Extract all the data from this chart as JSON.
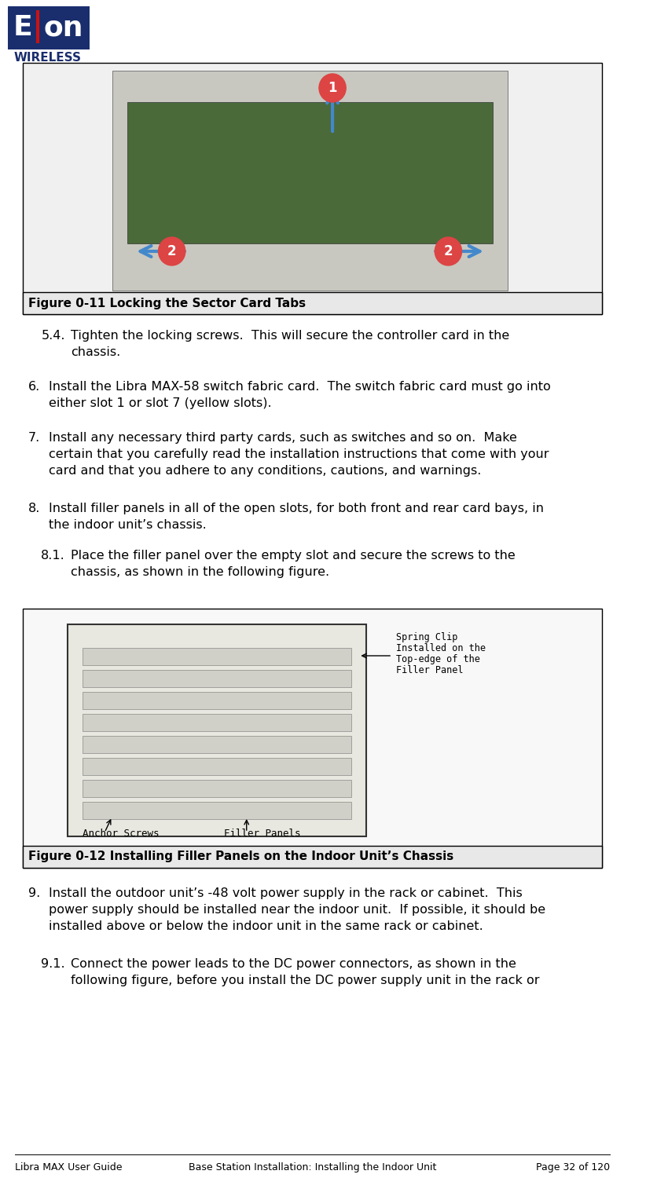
{
  "page_width": 8.36,
  "page_height": 15.0,
  "background_color": "#ffffff",
  "logo_text_e": "E",
  "logo_text_ion": "ion",
  "logo_text_wireless": "WIRELESS",
  "logo_color_main": "#1a2e6e",
  "logo_color_red": "#cc0000",
  "fig1_caption": "Figure 0-11 Locking the Sector Card Tabs",
  "fig2_caption": "Figure 0-12 Installing Filler Panels on the Indoor Unit’s Chassis",
  "footer_left": "Libra MAX User Guide",
  "footer_center": "Base Station Installation: Installing the Indoor Unit",
  "footer_right": "Page 32 of 120",
  "text_items": [
    {
      "indent": "5.4",
      "text": "Tighten the locking screws.  This will secure the controller card in the\n        chassis."
    },
    {
      "num": "6.",
      "text": "Install the Libra MAX-58 switch fabric card.  The switch fabric card must go into\n     either slot 1 or slot 7 (yellow slots)."
    },
    {
      "num": "7.",
      "text": "Install any necessary third party cards, such as switches and so on.  Make\n     certain that you carefully read the installation instructions that come with your\n     card and that you adhere to any conditions, cautions, and warnings."
    },
    {
      "num": "8.",
      "text": "Install filler panels in all of the open slots, for both front and rear card bays, in\n     the indoor unit’s chassis."
    },
    {
      "indent": "8.1",
      "text": "Place the filler panel over the empty slot and secure the screws to the\n        chassis, as shown in the following figure."
    },
    {
      "num": "9.",
      "text": "Install the outdoor unit’s -48 volt power supply in the rack or cabinet.  This\n     power supply should be installed near the indoor unit.  If possible, it should be\n     installed above or below the indoor unit in the same rack or cabinet."
    },
    {
      "indent": "9.1",
      "text": "Connect the power leads to the DC power connectors, as shown in the\n        following figure, before you install the DC power supply unit in the rack or"
    }
  ],
  "border_color": "#000000",
  "text_color": "#000000",
  "font_size_body": 11,
  "font_size_caption": 11,
  "font_size_footer": 9
}
